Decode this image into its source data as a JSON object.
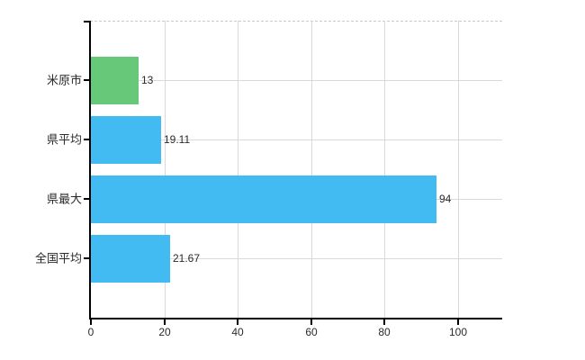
{
  "chart_data": {
    "type": "bar",
    "orientation": "horizontal",
    "title": "",
    "xlabel": "",
    "ylabel": "",
    "categories": [
      "米原市",
      "県平均",
      "県最大",
      "全国平均"
    ],
    "values": [
      13,
      19.11,
      94,
      21.67
    ],
    "value_labels": [
      "13",
      "19.11",
      "94",
      "21.67"
    ],
    "bar_colors": [
      "#66c878",
      "#41bbf1",
      "#41bbf1",
      "#41bbf1"
    ],
    "x_tick_labels": [
      "0",
      "20",
      "40",
      "60",
      "80",
      "100"
    ],
    "x_tick_values": [
      0,
      20,
      40,
      60,
      80,
      100
    ],
    "xlim": [
      0,
      112
    ],
    "grid": true,
    "legend_position": "none",
    "colors": {
      "background": "#ffffff",
      "axis": "#000000",
      "gridline": "#d9d9d9",
      "top_border": "#c8c8cd",
      "text": "#2b2b2b"
    }
  }
}
